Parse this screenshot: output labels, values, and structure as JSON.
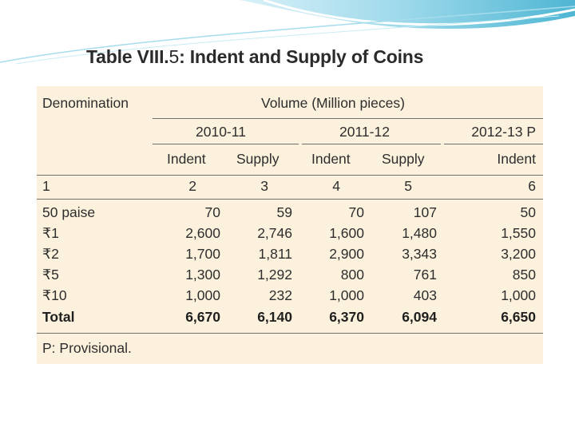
{
  "title": {
    "main": "Table VIII.",
    "num": "5",
    "rest": ": Indent and Supply of Coins"
  },
  "header": {
    "denomination": "Denomination",
    "volume": "Volume (Million pieces)",
    "years": [
      "2010-11",
      "2011-12",
      "2012-13 P"
    ],
    "subheads": [
      "Indent",
      "Supply",
      "Indent",
      "Supply",
      "Indent"
    ]
  },
  "colnums": [
    "1",
    "2",
    "3",
    "4",
    "5",
    "6"
  ],
  "rows": [
    {
      "label": "50 paise",
      "values": [
        "70",
        "59",
        "70",
        "107",
        "50"
      ]
    },
    {
      "label": "₹1",
      "values": [
        "2,600",
        "2,746",
        "1,600",
        "1,480",
        "1,550"
      ]
    },
    {
      "label": "₹2",
      "values": [
        "1,700",
        "1,811",
        "2,900",
        "3,343",
        "3,200"
      ]
    },
    {
      "label": "₹5",
      "values": [
        "1,300",
        "1,292",
        "800",
        "761",
        "850"
      ]
    },
    {
      "label": "₹10",
      "values": [
        "1,000",
        "232",
        "1,000",
        "403",
        "1,000"
      ]
    }
  ],
  "total": {
    "label": "Total",
    "values": [
      "6,670",
      "6,140",
      "6,370",
      "6,094",
      "6,650"
    ]
  },
  "footnote": "P: Provisional.",
  "colors": {
    "panel": "#fbf1dc",
    "text": "#2e2e2e",
    "deco": "#5bbcd6"
  }
}
